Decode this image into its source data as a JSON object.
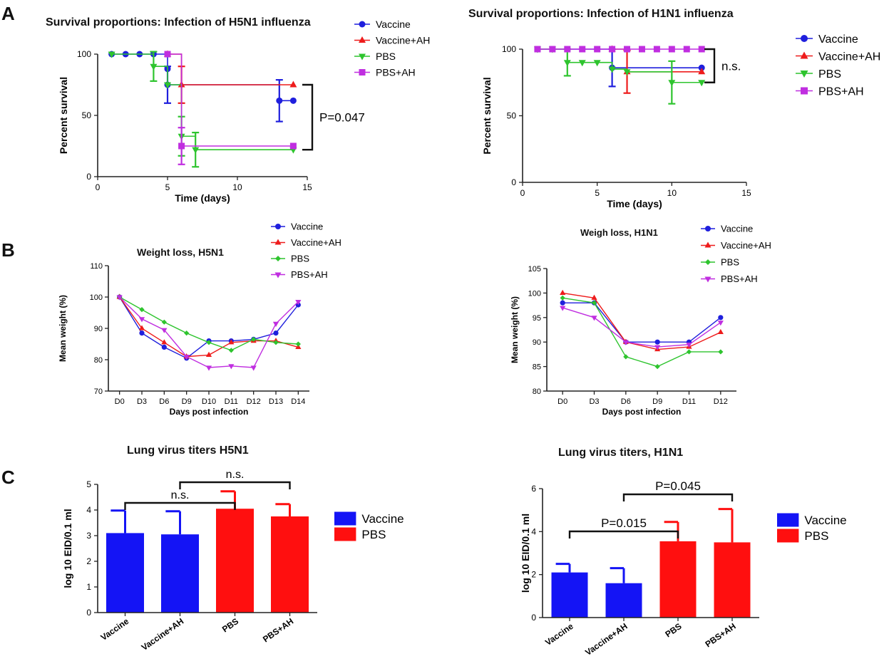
{
  "panel_labels": [
    "A",
    "B",
    "C"
  ],
  "colors": {
    "vaccine": "#1f1fdd",
    "vaccine_ah": "#ee1c1c",
    "pbs": "#2ec42e",
    "pbs_ah": "#c02ee0",
    "bar_vaccine": "#1414f5",
    "bar_pbs": "#ff0f0f",
    "axis": "#222222"
  },
  "chart_data": [
    {
      "id": "survival-h5n1",
      "type": "line",
      "title": "Survival proportions: Infection of H5N1 influenza",
      "xlabel": "Time (days)",
      "ylabel": "Percent survival",
      "xlim": [
        0,
        15
      ],
      "ylim": [
        0,
        100
      ],
      "xticks": [
        0,
        5,
        10,
        15
      ],
      "yticks": [
        0,
        50,
        100
      ],
      "legend": [
        "Vaccine",
        "Vaccine+AH",
        "PBS",
        "PBS+AH"
      ],
      "legend_position": "right",
      "series": [
        {
          "name": "Vaccine",
          "color_key": "vaccine",
          "marker": "circle",
          "x": [
            1,
            2,
            3,
            4,
            5,
            5,
            13,
            14
          ],
          "y": [
            100,
            100,
            100,
            100,
            88,
            75,
            62,
            62
          ],
          "err": [
            [
              5,
              75,
              15
            ],
            [
              13,
              62,
              17
            ]
          ]
        },
        {
          "name": "Vaccine+AH",
          "color_key": "vaccine_ah",
          "marker": "triangle-up",
          "x": [
            5,
            6,
            14
          ],
          "y": [
            100,
            75,
            75
          ],
          "err": [
            [
              6,
              75,
              15
            ]
          ]
        },
        {
          "name": "PBS",
          "color_key": "pbs",
          "marker": "triangle-down",
          "x": [
            1,
            4,
            5,
            6,
            7,
            14
          ],
          "y": [
            100,
            90,
            75,
            33,
            22,
            22
          ],
          "err": [
            [
              4,
              90,
              12
            ],
            [
              6,
              33,
              16
            ],
            [
              7,
              22,
              14
            ]
          ]
        },
        {
          "name": "PBS+AH",
          "color_key": "pbs_ah",
          "marker": "square",
          "x": [
            5,
            6,
            14
          ],
          "y": [
            100,
            25,
            25
          ],
          "err": [
            [
              6,
              25,
              15
            ]
          ]
        }
      ],
      "annotation": "P=0.047",
      "bracket_y": [
        75,
        22
      ]
    },
    {
      "id": "survival-h1n1",
      "type": "line",
      "title": "Survival proportions: Infection of H1N1 influenza",
      "xlabel": "Time (days)",
      "ylabel": "Percent survival",
      "xlim": [
        0,
        15
      ],
      "ylim": [
        0,
        100
      ],
      "xticks": [
        0,
        5,
        10,
        15
      ],
      "yticks": [
        0,
        50,
        100
      ],
      "legend": [
        "Vaccine",
        "Vaccine+AH",
        "PBS",
        "PBS+AH"
      ],
      "legend_position": "right",
      "series": [
        {
          "name": "Vaccine",
          "color_key": "vaccine",
          "marker": "circle",
          "x": [
            1,
            2,
            3,
            4,
            5,
            6,
            12
          ],
          "y": [
            100,
            100,
            100,
            100,
            100,
            86,
            86
          ],
          "err": [
            [
              6,
              86,
              14
            ]
          ]
        },
        {
          "name": "Vaccine+AH",
          "color_key": "vaccine_ah",
          "marker": "triangle-up",
          "x": [
            6,
            7,
            12
          ],
          "y": [
            100,
            83,
            83
          ],
          "err": [
            [
              7,
              83,
              16
            ]
          ]
        },
        {
          "name": "PBS",
          "color_key": "pbs",
          "marker": "triangle-down",
          "x": [
            1,
            2,
            3,
            4,
            5,
            6,
            7,
            10,
            12
          ],
          "y": [
            100,
            100,
            90,
            90,
            90,
            85,
            83,
            75,
            75
          ],
          "err": [
            [
              3,
              90,
              10
            ],
            [
              10,
              75,
              16
            ]
          ]
        },
        {
          "name": "PBS+AH",
          "color_key": "pbs_ah",
          "marker": "square",
          "x": [
            1,
            2,
            3,
            4,
            5,
            6,
            7,
            8,
            9,
            10,
            11,
            12
          ],
          "y": [
            100,
            100,
            100,
            100,
            100,
            100,
            100,
            100,
            100,
            100,
            100,
            100
          ],
          "err": []
        }
      ],
      "annotation": "n.s.",
      "bracket_y": [
        100,
        75
      ]
    },
    {
      "id": "weight-h5n1",
      "type": "line",
      "title": "Weight loss, H5N1",
      "xlabel": "Days post infection",
      "ylabel": "Mean weight (%)",
      "categories": [
        "D0",
        "D3",
        "D6",
        "D9",
        "D10",
        "D11",
        "D12",
        "D13",
        "D14"
      ],
      "ylim": [
        70,
        110
      ],
      "yticks": [
        70,
        80,
        90,
        100,
        110
      ],
      "legend": [
        "Vaccine",
        "Vaccine+AH",
        "PBS",
        "PBS+AH"
      ],
      "legend_position": "top-right",
      "series": [
        {
          "name": "Vaccine",
          "color_key": "vaccine",
          "marker": "circle",
          "values": [
            100,
            88.5,
            84,
            80.5,
            86,
            86,
            86.5,
            88.5,
            97.5
          ]
        },
        {
          "name": "Vaccine+AH",
          "color_key": "vaccine_ah",
          "marker": "triangle-up",
          "values": [
            100,
            90,
            85.5,
            81,
            81.5,
            85.5,
            86,
            86,
            84
          ]
        },
        {
          "name": "PBS",
          "color_key": "pbs",
          "marker": "diamond",
          "values": [
            100,
            96,
            92,
            88.5,
            85.5,
            83,
            86.5,
            85.5,
            85
          ]
        },
        {
          "name": "PBS+AH",
          "color_key": "pbs_ah",
          "marker": "triangle-down",
          "values": [
            100,
            93,
            89.5,
            81,
            77.5,
            78,
            77.5,
            91.5,
            98.5
          ]
        }
      ]
    },
    {
      "id": "weight-h1n1",
      "type": "line",
      "title": "Weigh loss, H1N1",
      "xlabel": "Days post infection",
      "ylabel": "Mean weight (%)",
      "categories": [
        "D0",
        "D3",
        "D6",
        "D9",
        "D11",
        "D12"
      ],
      "ylim": [
        80,
        105
      ],
      "yticks": [
        80,
        85,
        90,
        95,
        100,
        105
      ],
      "legend": [
        "Vaccine",
        "Vaccine+AH",
        "PBS",
        "PBS+AH"
      ],
      "legend_position": "top-right",
      "series": [
        {
          "name": "Vaccine",
          "color_key": "vaccine",
          "marker": "circle",
          "values": [
            98,
            98,
            90,
            90,
            90,
            95
          ]
        },
        {
          "name": "Vaccine+AH",
          "color_key": "vaccine_ah",
          "marker": "triangle-up",
          "values": [
            100,
            99,
            90,
            88.5,
            89,
            92
          ]
        },
        {
          "name": "PBS",
          "color_key": "pbs",
          "marker": "diamond",
          "values": [
            99,
            98,
            87,
            85,
            88,
            88
          ]
        },
        {
          "name": "PBS+AH",
          "color_key": "pbs_ah",
          "marker": "triangle-down",
          "values": [
            97,
            95,
            90,
            89,
            89.5,
            94
          ]
        }
      ]
    },
    {
      "id": "titers-h5n1",
      "type": "bar",
      "title": "Lung virus titers H5N1",
      "xlabel": "",
      "ylabel": "log 10 EID/0.1 ml",
      "categories": [
        "Vaccine",
        "Vaccine+AH",
        "PBS",
        "PBS+AH"
      ],
      "values": [
        3.1,
        3.05,
        4.05,
        3.75
      ],
      "errors": [
        0.88,
        0.9,
        0.68,
        0.48
      ],
      "bar_colors": [
        "bar_vaccine",
        "bar_vaccine",
        "bar_pbs",
        "bar_pbs"
      ],
      "ylim": [
        0,
        5
      ],
      "yticks": [
        0,
        1,
        2,
        3,
        4,
        5
      ],
      "legend": [
        "Vaccine",
        "PBS"
      ],
      "legend_position": "right",
      "comparisons": [
        {
          "from": 0,
          "to": 2,
          "label": "n.s.",
          "level": 0
        },
        {
          "from": 1,
          "to": 3,
          "label": "n.s.",
          "level": 1
        }
      ]
    },
    {
      "id": "titers-h1n1",
      "type": "bar",
      "title": "Lung virus titers, H1N1",
      "xlabel": "",
      "ylabel": "log 10 EID/0.1 ml",
      "categories": [
        "Vaccine",
        "Vaccine+AH",
        "PBS",
        "PBS+AH"
      ],
      "values": [
        2.1,
        1.6,
        3.55,
        3.5
      ],
      "errors": [
        0.4,
        0.7,
        0.9,
        1.55
      ],
      "bar_colors": [
        "bar_vaccine",
        "bar_vaccine",
        "bar_pbs",
        "bar_pbs"
      ],
      "ylim": [
        0,
        6
      ],
      "yticks": [
        0,
        2,
        4,
        6
      ],
      "legend": [
        "Vaccine",
        "PBS"
      ],
      "legend_position": "right",
      "comparisons": [
        {
          "from": 0,
          "to": 2,
          "label": "P=0.015",
          "level": 0
        },
        {
          "from": 1,
          "to": 3,
          "label": "P=0.045",
          "level": 1
        }
      ]
    }
  ]
}
